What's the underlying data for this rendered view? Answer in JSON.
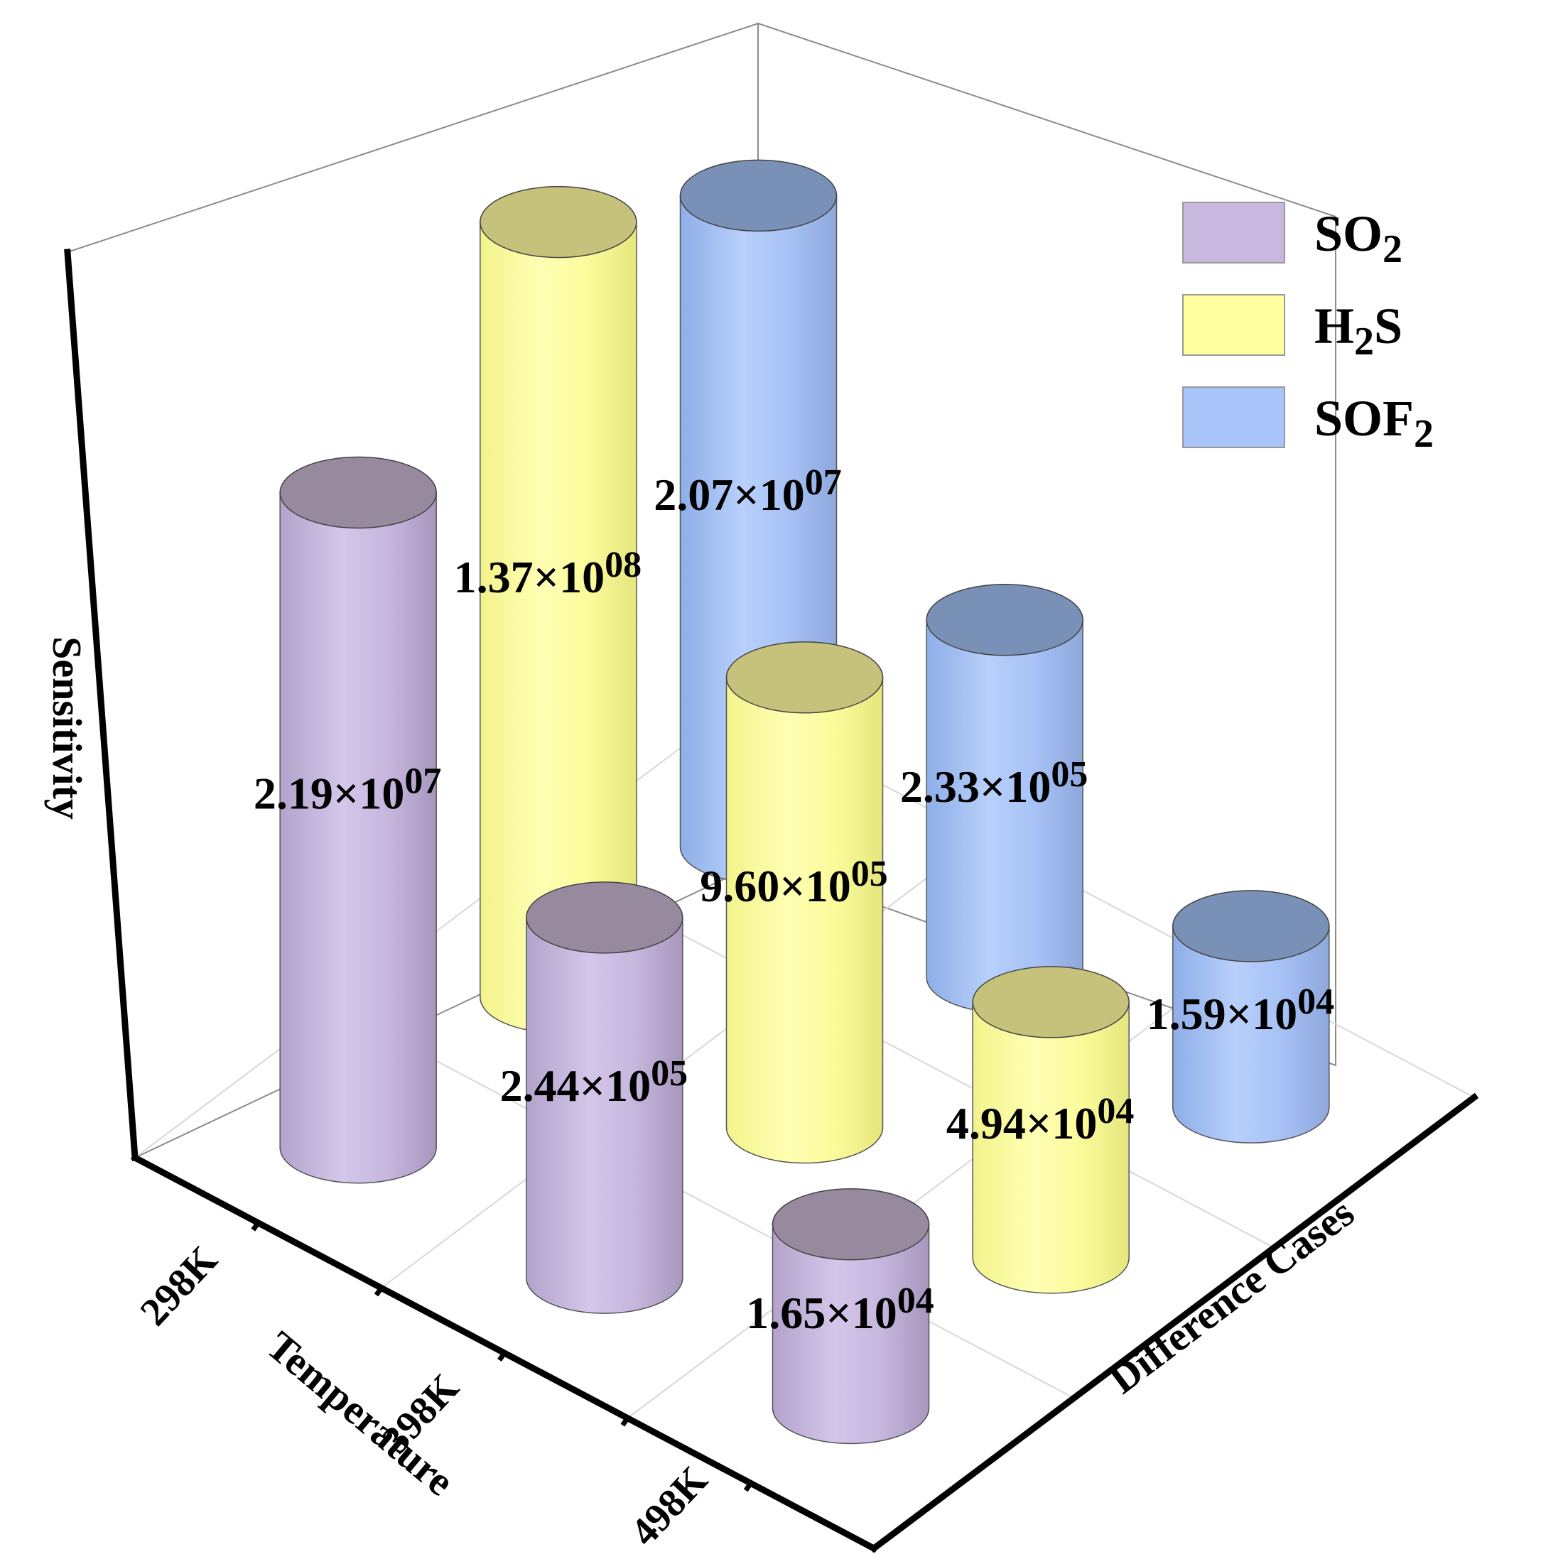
{
  "chart_data": {
    "type": "bar3d",
    "shape": "cylinder",
    "xlabel": "Temperature",
    "ylabel": "Difference Cases",
    "zlabel": "Sensitivity",
    "categories": [
      "298K",
      "398K",
      "498K"
    ],
    "series": [
      {
        "name": "SO2",
        "legend": {
          "base": "SO",
          "sub": "2",
          "tail": ""
        },
        "color": "#c8b8e0",
        "values": [
          21900000.0,
          244000.0,
          16500.0
        ],
        "labels": [
          {
            "m": "2.19×10",
            "e": "07"
          },
          {
            "m": "2.44×10",
            "e": "05"
          },
          {
            "m": "1.65×10",
            "e": "04"
          }
        ]
      },
      {
        "name": "H2S",
        "legend": {
          "base": "H",
          "sub": "2",
          "tail": "S"
        },
        "color": "#ffffa0",
        "values": [
          137000000.0,
          960000.0,
          49400.0
        ],
        "labels": [
          {
            "m": "1.37×10",
            "e": "08"
          },
          {
            "m": "9.60×10",
            "e": "05"
          },
          {
            "m": "4.94×10",
            "e": "04"
          }
        ]
      },
      {
        "name": "SOF2",
        "legend": {
          "base": "SOF",
          "sub": "2",
          "tail": ""
        },
        "color": "#a8c4f8",
        "values": [
          20700000.0,
          233000.0,
          15900.0
        ],
        "labels": [
          {
            "m": "2.07×10",
            "e": "07"
          },
          {
            "m": "2.33×10",
            "e": "05"
          },
          {
            "m": "1.59×10",
            "e": "04"
          }
        ]
      }
    ],
    "grid": true,
    "legend_position": "top-right",
    "colors": {
      "top": {
        "SO2": "#978a9e",
        "H2S": "#c6c27c",
        "SOF2": "#7991b6"
      },
      "axis": "#000000",
      "grid": "#d8d8d8",
      "frame": "#8c8c8c"
    }
  }
}
